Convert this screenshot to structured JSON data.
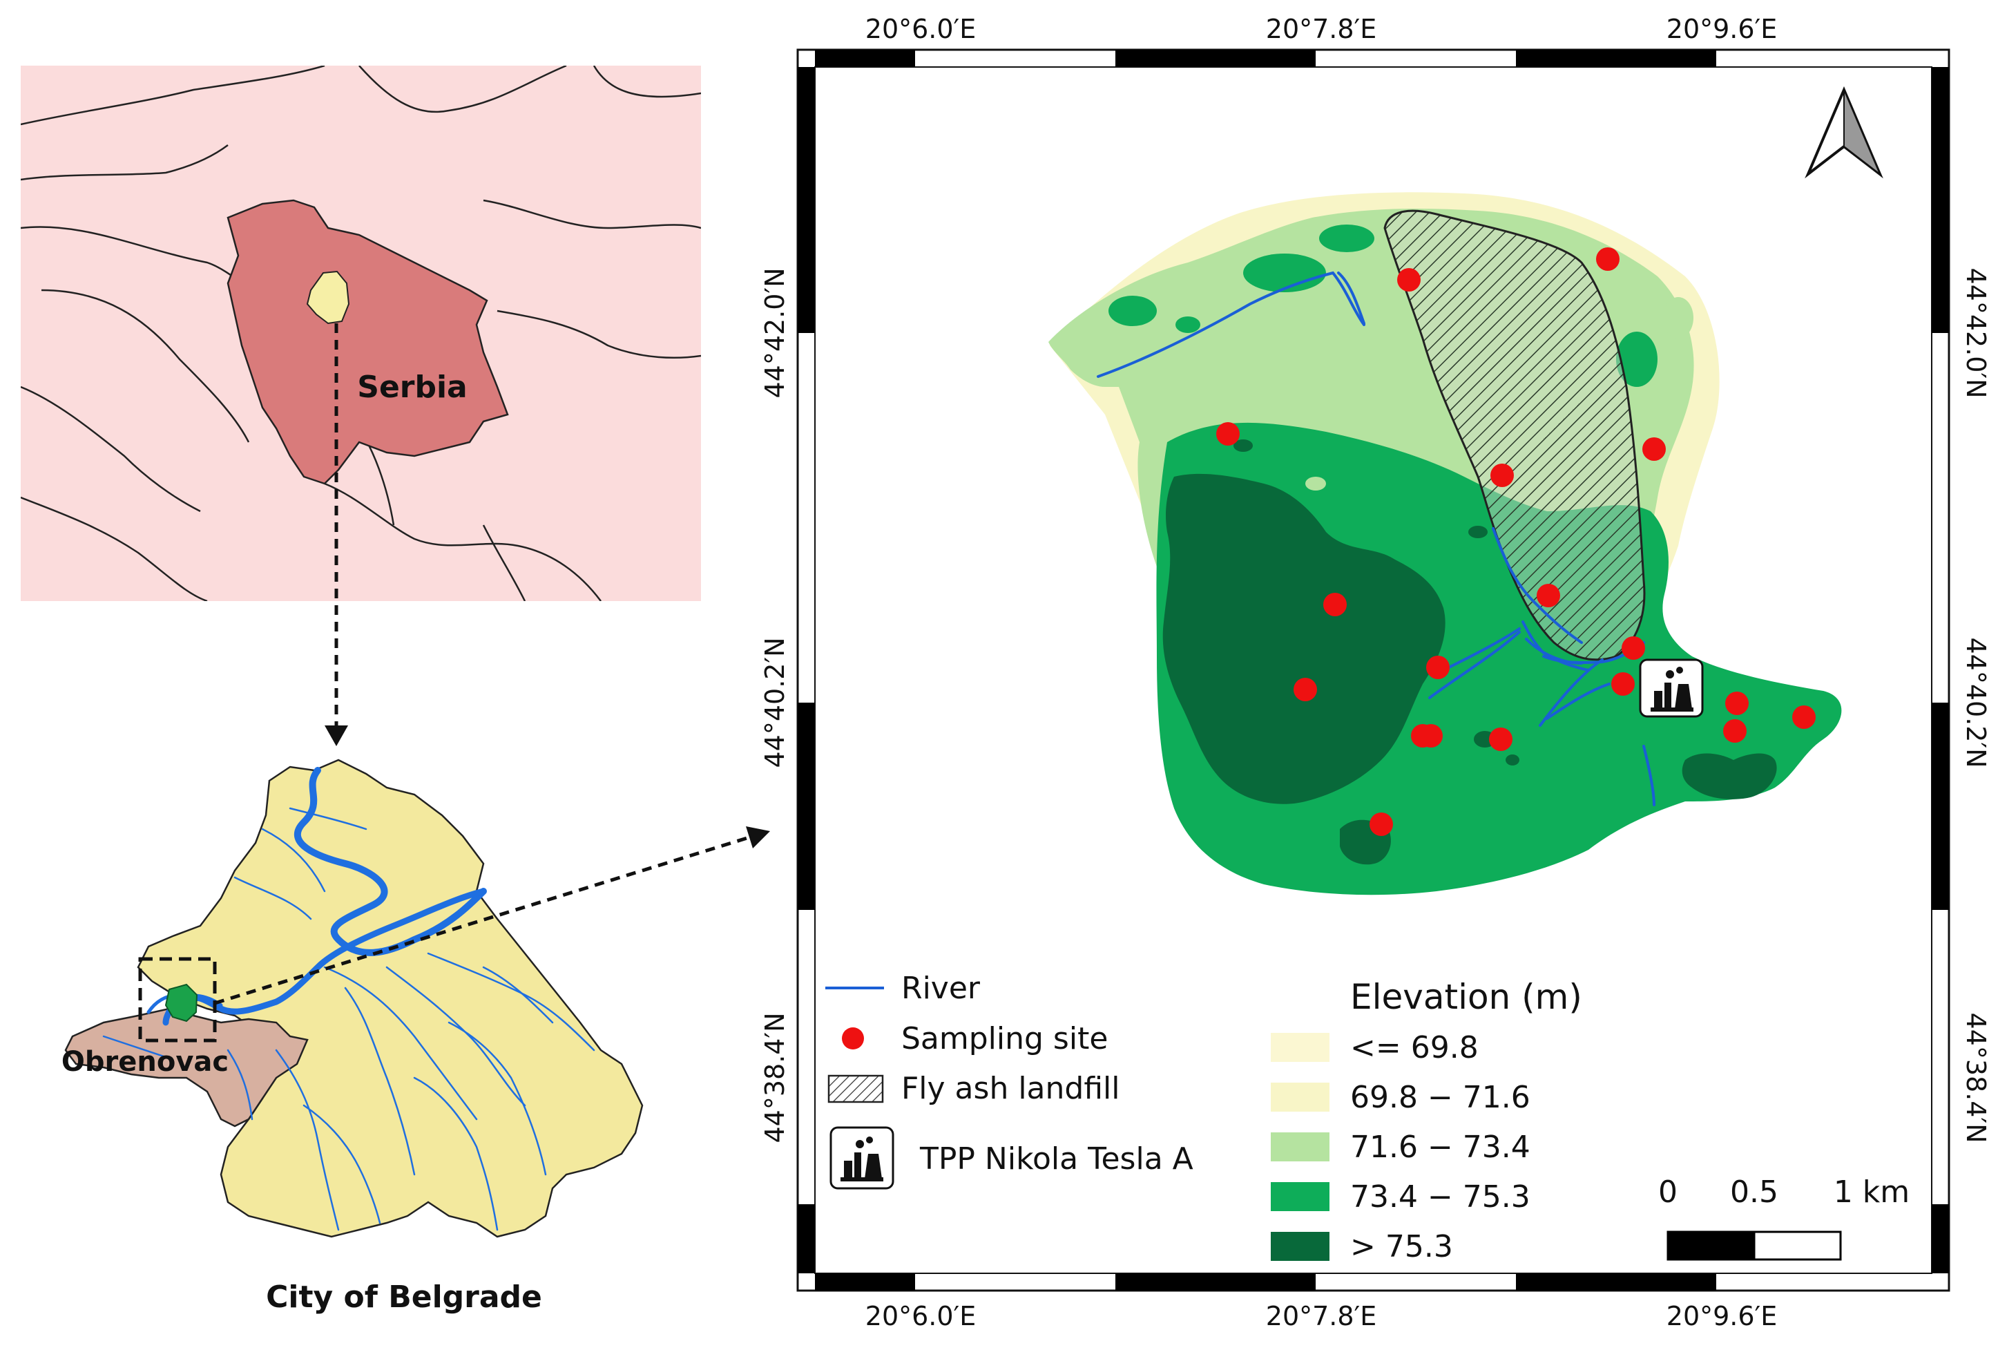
{
  "overview_map": {
    "country_label": "Serbia",
    "colors": {
      "background": "#fbdcdc",
      "serbia": "#d97b7b",
      "belgrade_marker": "#f6efa6",
      "borders": "#222222"
    }
  },
  "belgrade_map": {
    "municipality_label": "Obrenovac",
    "caption": "City of Belgrade",
    "colors": {
      "city": "#f3e99e",
      "obrenovac": "#d7b0a0",
      "rivers": "#1f6fe0",
      "study_area": "#1aa24a"
    }
  },
  "study_area_map": {
    "top_ticks": [
      "20°6.0′E",
      "20°7.8′E",
      "20°9.6′E"
    ],
    "bottom_ticks": [
      "20°6.0′E",
      "20°7.8′E",
      "20°9.6′E"
    ],
    "left_ticks": [
      "44°42.0′N",
      "44°40.2′N",
      "44°38.4′N"
    ],
    "right_ticks": [
      "44°42.0′N",
      "44°40.2′N",
      "44°38.4′N"
    ],
    "north_arrow": "north-arrow-icon",
    "sampling_site_count": 18
  },
  "legend": {
    "river": "River",
    "sampling_site": "Sampling site",
    "landfill": "Fly ash landfill",
    "tpp": "TPP Nikola Tesla A",
    "elevation_title": "Elevation (m)",
    "classes": [
      {
        "label": "<= 69.8",
        "color": "#fbf7d2"
      },
      {
        "label": "69.8 − 71.6",
        "color": "#f8f5c7"
      },
      {
        "label": "71.6 − 73.4",
        "color": "#b5e3a0"
      },
      {
        "label": "73.4 − 75.3",
        "color": "#0ead59"
      },
      {
        "label": "> 75.3",
        "color": "#08693a"
      }
    ],
    "colors": {
      "river": "#1a5fd6",
      "sampling_site": "#ee1111"
    }
  },
  "scale_bar": {
    "ticks": [
      "0",
      "0.5",
      "1 km"
    ]
  }
}
